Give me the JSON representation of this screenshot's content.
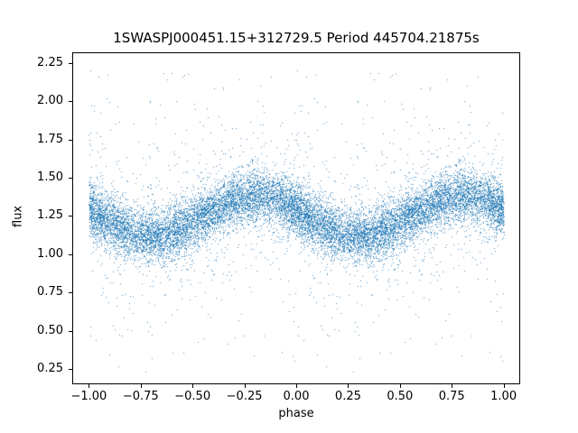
{
  "figure": {
    "background": "#ffffff",
    "frame_color": "#000000"
  },
  "chart_data": {
    "type": "scatter",
    "title": "1SWASPJ000451.15+312729.5 Period 445704.21875s",
    "xlabel": "phase",
    "ylabel": "flux",
    "xlim": [
      -1.08,
      1.08
    ],
    "ylim": [
      0.15,
      2.32
    ],
    "x_ticks": [
      -1.0,
      -0.75,
      -0.5,
      -0.25,
      0.0,
      0.25,
      0.5,
      0.75,
      1.0
    ],
    "x_tick_labels": [
      "−1.00",
      "−0.75",
      "−0.50",
      "−0.25",
      "0.00",
      "0.25",
      "0.50",
      "0.75",
      "1.00"
    ],
    "y_ticks": [
      0.25,
      0.5,
      0.75,
      1.0,
      1.25,
      1.5,
      1.75,
      2.0,
      2.25
    ],
    "y_tick_labels": [
      "0.25",
      "0.50",
      "0.75",
      "1.00",
      "1.25",
      "1.50",
      "1.75",
      "2.00",
      "2.25"
    ],
    "grid": false,
    "legend": null,
    "marker_color": "#1f77b4",
    "marker_alpha": 0.8,
    "marker_size_px": 1,
    "n_points": 16000,
    "seed": 42,
    "model": {
      "description": "phase-folded light curve plotted twice over phase -1..1",
      "mean_flux": 1.25,
      "amplitude": 0.13,
      "peak_phase": 0.8,
      "trough_phase": 0.3,
      "period_phase_units": 1.0
    },
    "noise": {
      "core_sigma": 0.085,
      "broad_fraction": 0.1,
      "broad_sigma": 0.27,
      "outlier_fraction": 0.018,
      "outlier_flux_range": [
        0.22,
        2.22
      ]
    },
    "phase_clumps": {
      "fraction": 0.45,
      "sigma": 0.045,
      "centers": [
        0.03,
        0.15,
        0.3,
        0.42,
        0.55,
        0.68,
        0.8,
        0.95
      ]
    }
  }
}
